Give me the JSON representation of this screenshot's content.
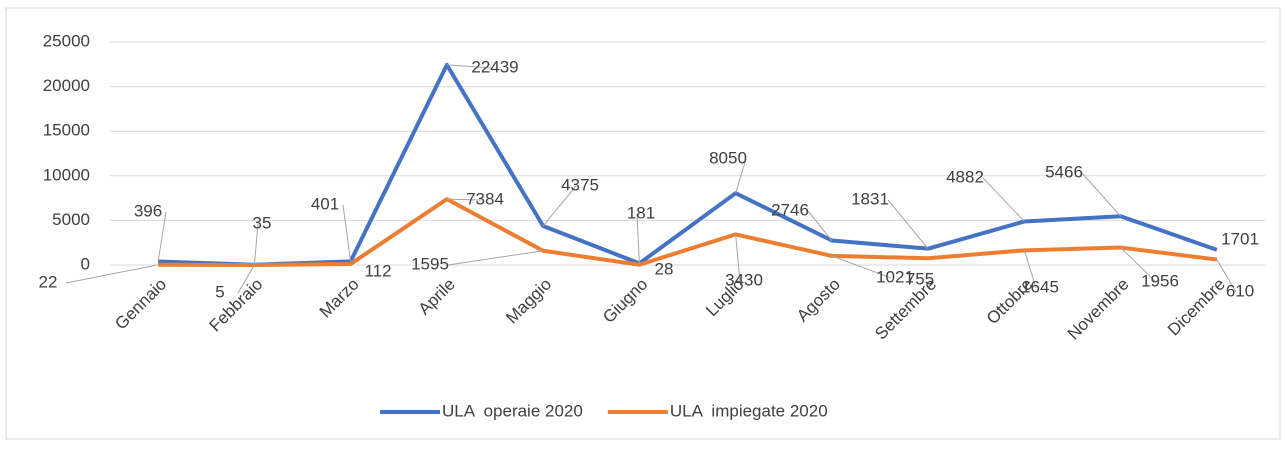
{
  "chart_data": {
    "type": "line",
    "categories": [
      "Gennaio",
      "Febbraio",
      "Marzo",
      "Aprile",
      "Maggio",
      "Giugno",
      "Luglio",
      "Agosto",
      "Settembre",
      "Ottobre",
      "Novembre",
      "Dicembre"
    ],
    "series": [
      {
        "name": "ULA  operaie 2020",
        "color": "#4472c4",
        "values": [
          396,
          35,
          401,
          22439,
          4375,
          181,
          8050,
          2746,
          1831,
          4882,
          5466,
          1701
        ]
      },
      {
        "name": "ULA  impiegate 2020",
        "color": "#ed7d31",
        "values": [
          22,
          5,
          112,
          7384,
          1595,
          28,
          3430,
          1021,
          755,
          1645,
          1956,
          610
        ]
      }
    ],
    "ylim": [
      0,
      25000
    ],
    "yticks": [
      0,
      5000,
      10000,
      15000,
      20000,
      25000
    ],
    "grid": true,
    "legend": "bottom"
  }
}
